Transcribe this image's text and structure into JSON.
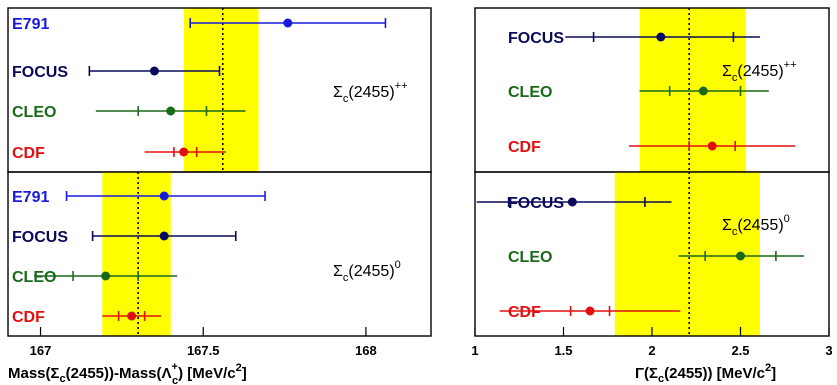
{
  "colors": {
    "E791": "#1a1adc",
    "FOCUS": "#0a0a5a",
    "CLEO": "#1a6a1a",
    "CDF": "#e01010",
    "band": "#ffff00"
  },
  "chart_data": [
    {
      "type": "scatter",
      "panel": "mass-top",
      "annotation": {
        "main": "Σ",
        "sub": "c",
        "rest": "(2455)",
        "sup": "++"
      },
      "xlim": [
        166.9,
        168.2
      ],
      "band": [
        167.44,
        167.67
      ],
      "line": 167.56,
      "points": [
        {
          "label": "E791",
          "value": 167.76,
          "stat": [
            167.46,
            168.06
          ],
          "sys": [
            167.46,
            168.06
          ]
        },
        {
          "label": "FOCUS",
          "value": 167.35,
          "stat": [
            167.15,
            167.55
          ],
          "sys": [
            167.15,
            167.55
          ]
        },
        {
          "label": "CLEO",
          "value": 167.4,
          "stat": [
            167.3,
            167.51
          ],
          "sys": [
            167.17,
            167.63
          ]
        },
        {
          "label": "CDF",
          "value": 167.44,
          "stat": [
            167.41,
            167.48
          ],
          "sys": [
            167.32,
            167.57
          ]
        }
      ]
    },
    {
      "type": "scatter",
      "panel": "mass-bottom",
      "annotation": {
        "main": "Σ",
        "sub": "c",
        "rest": "(2455)",
        "sup": "0"
      },
      "xlim": [
        166.9,
        168.2
      ],
      "ticks": [
        {
          "v": 167,
          "l": "167"
        },
        {
          "v": 167.5,
          "l": "167.5"
        },
        {
          "v": 168,
          "l": "168"
        }
      ],
      "xlabel": {
        "a": "Mass(Σ",
        "b": "c",
        "c": "(2455))-Mass(Λ",
        "d": "c",
        "e": "+",
        "f": ") [MeV/c",
        "g": "2",
        "h": "]"
      },
      "band": [
        167.19,
        167.4
      ],
      "line": 167.3,
      "points": [
        {
          "label": "E791",
          "value": 167.38,
          "stat": [
            167.08,
            167.69
          ],
          "sys": [
            167.08,
            167.69
          ]
        },
        {
          "label": "FOCUS",
          "value": 167.38,
          "stat": [
            167.16,
            167.6
          ],
          "sys": [
            167.16,
            167.6
          ]
        },
        {
          "label": "CLEO",
          "value": 167.2,
          "stat": [
            167.1,
            167.3
          ],
          "sys": [
            166.98,
            167.42
          ]
        },
        {
          "label": "CDF",
          "value": 167.28,
          "stat": [
            167.24,
            167.32
          ],
          "sys": [
            167.19,
            167.37
          ]
        }
      ]
    },
    {
      "type": "scatter",
      "panel": "width-top",
      "annotation": {
        "main": "Σ",
        "sub": "c",
        "rest": "(2455)",
        "sup": "++"
      },
      "xlim": [
        1.0,
        3.0
      ],
      "band": [
        1.93,
        2.53
      ],
      "line": 2.21,
      "points": [
        {
          "label": "FOCUS",
          "value": 2.05,
          "stat": [
            1.67,
            2.46
          ],
          "sys": [
            1.51,
            2.61
          ]
        },
        {
          "label": "CLEO",
          "value": 2.29,
          "stat": [
            2.1,
            2.5
          ],
          "sys": [
            1.93,
            2.66
          ]
        },
        {
          "label": "CDF",
          "value": 2.34,
          "stat": [
            2.21,
            2.47
          ],
          "sys": [
            1.87,
            2.81
          ]
        }
      ]
    },
    {
      "type": "scatter",
      "panel": "width-bottom",
      "annotation": {
        "main": "Σ",
        "sub": "c",
        "rest": "(2455)",
        "sup": "0"
      },
      "xlim": [
        1.0,
        3.0
      ],
      "ticks": [
        {
          "v": 1,
          "l": "1"
        },
        {
          "v": 1.5,
          "l": "1.5"
        },
        {
          "v": 2,
          "l": "2"
        },
        {
          "v": 2.5,
          "l": "2.5"
        },
        {
          "v": 3,
          "l": "3"
        }
      ],
      "xlabel": {
        "a": "Γ(Σ",
        "b": "c",
        "c": "(2455)) [MeV/c",
        "d": "2",
        "e": "]"
      },
      "band": [
        1.79,
        2.61
      ],
      "line": 2.21,
      "points": [
        {
          "label": "FOCUS",
          "value": 1.55,
          "stat": [
            1.19,
            1.96
          ],
          "sys": [
            1.01,
            2.11
          ]
        },
        {
          "label": "CLEO",
          "value": 2.5,
          "stat": [
            2.3,
            2.7
          ],
          "sys": [
            2.15,
            2.86
          ]
        },
        {
          "label": "CDF",
          "value": 1.65,
          "stat": [
            1.54,
            1.76
          ],
          "sys": [
            1.14,
            2.16
          ]
        }
      ]
    }
  ]
}
